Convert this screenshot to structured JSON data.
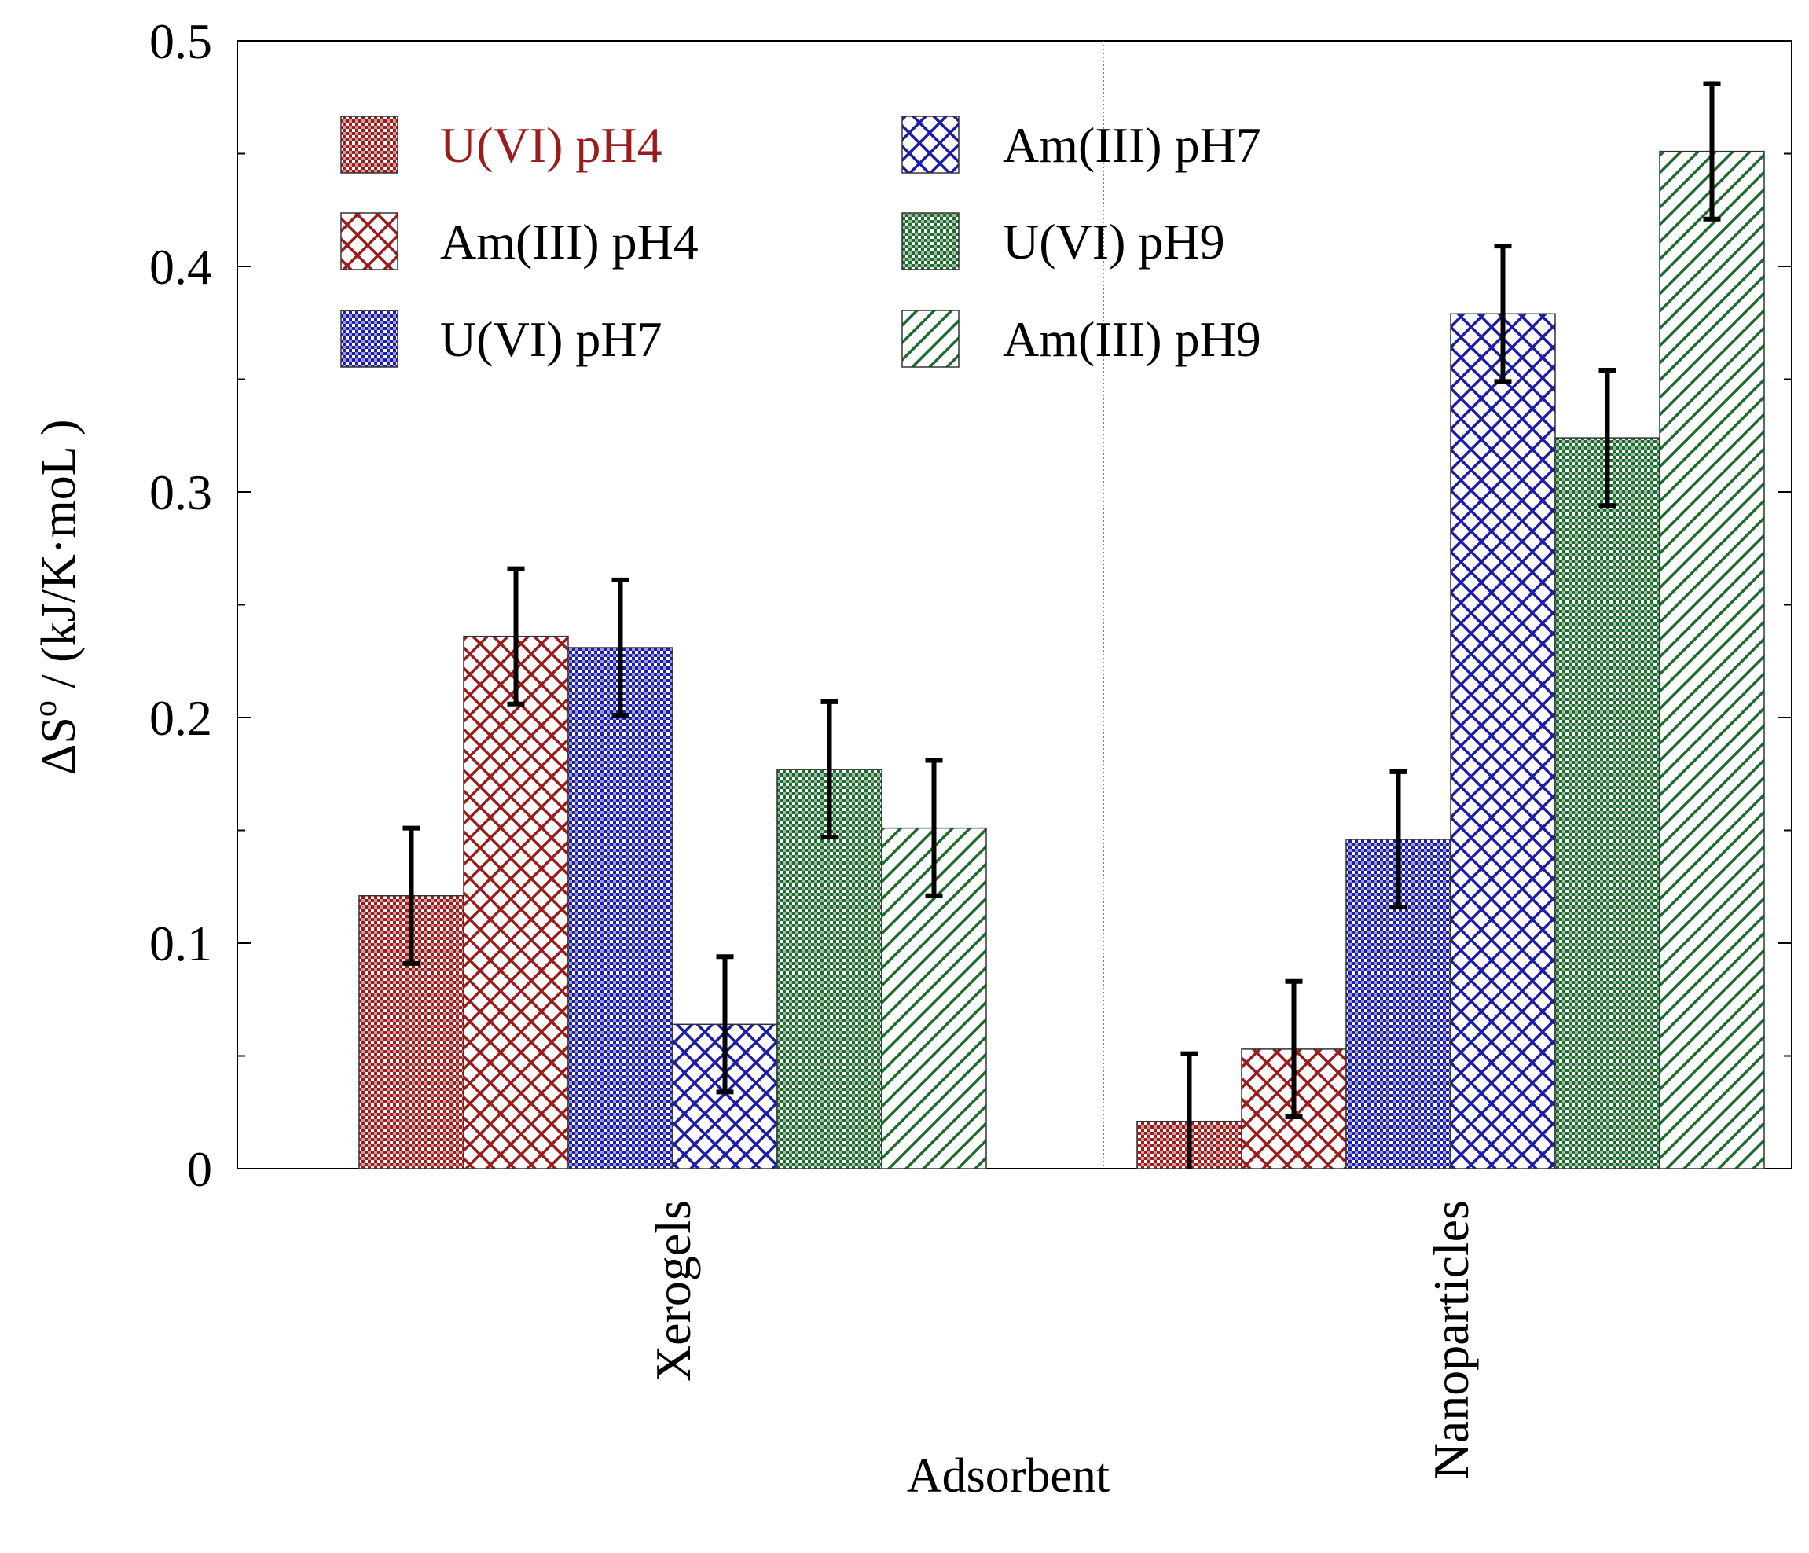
{
  "chart_data": {
    "type": "bar",
    "title": "",
    "xlabel": "Adsorbent",
    "ylabel_main": "ΔS",
    "ylabel_sup": "o",
    "ylabel_rest": " / (kJ/K·moL )",
    "categories": [
      "Xerogels",
      "Nanoparticles"
    ],
    "ylim": [
      0,
      0.5
    ],
    "yticks": [
      "0",
      "0.1",
      "0.2",
      "0.3",
      "0.4",
      "0.5"
    ],
    "grid": false,
    "legend_position": "top-left",
    "series": [
      {
        "name": "U(VI) pH4",
        "color": "#9b1c1c",
        "pattern": "checker",
        "values": [
          0.121,
          0.021
        ],
        "errors": [
          0.03,
          0.03
        ]
      },
      {
        "name": "Am(III) pH4",
        "color": "#9b1c1c",
        "pattern": "crosshatch",
        "values": [
          0.236,
          0.053
        ],
        "errors": [
          0.03,
          0.03
        ]
      },
      {
        "name": "U(VI) pH7",
        "color": "#1c1caa",
        "pattern": "checker",
        "values": [
          0.231,
          0.146
        ],
        "errors": [
          0.03,
          0.03
        ]
      },
      {
        "name": "Am(III) pH7",
        "color": "#1c1caa",
        "pattern": "crosshatch",
        "values": [
          0.064,
          0.379
        ],
        "errors": [
          0.03,
          0.03
        ]
      },
      {
        "name": "U(VI) pH9",
        "color": "#1f6b2e",
        "pattern": "checker",
        "values": [
          0.177,
          0.324
        ],
        "errors": [
          0.03,
          0.03
        ]
      },
      {
        "name": "Am(III) pH9",
        "color": "#1f6b2e",
        "pattern": "diagonal",
        "values": [
          0.151,
          0.451
        ],
        "errors": [
          0.03,
          0.03
        ]
      }
    ]
  }
}
